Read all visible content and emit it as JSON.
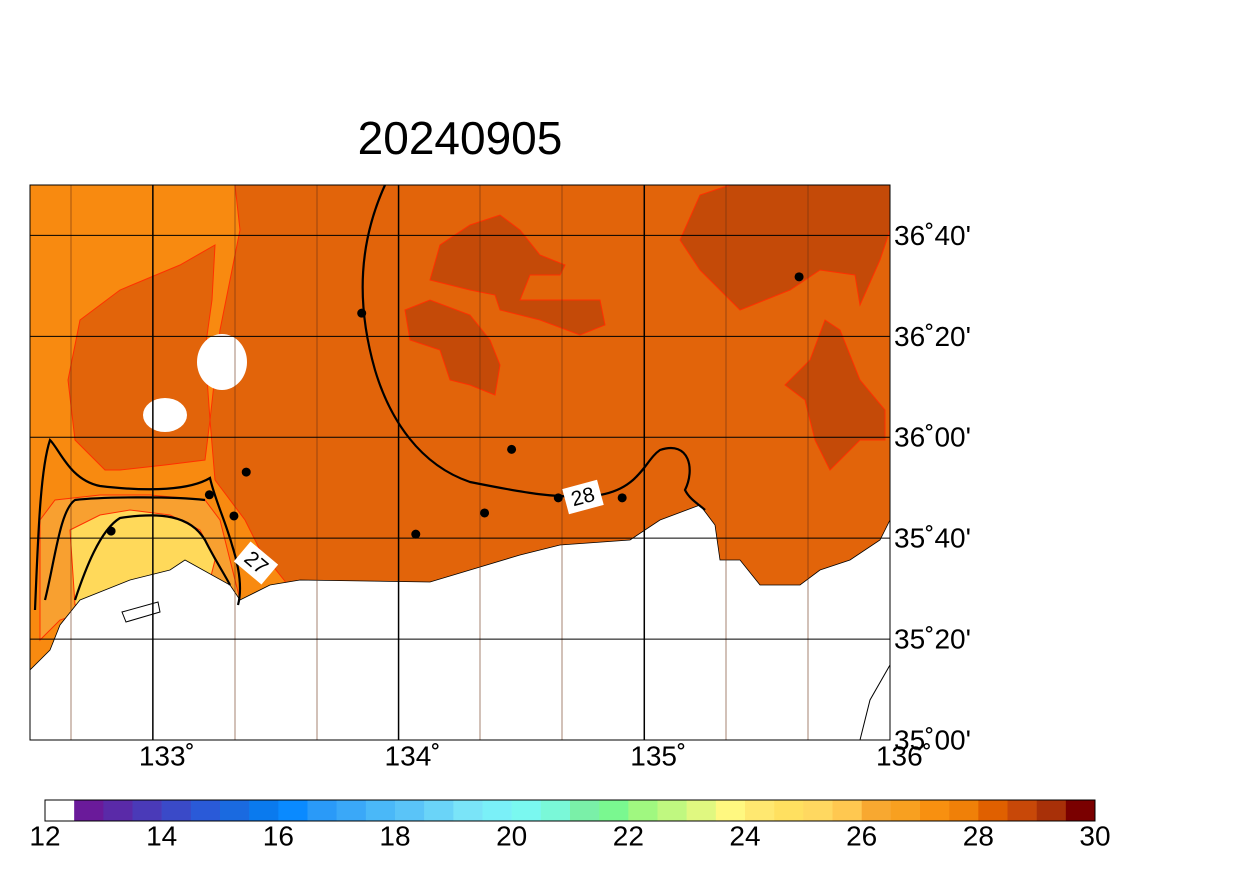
{
  "title": "20240905",
  "map": {
    "xlim": [
      132.5,
      136
    ],
    "ylim": [
      35,
      36.8333
    ],
    "xticks": [
      {
        "value": 133,
        "label": "133˚"
      },
      {
        "value": 134,
        "label": "134˚"
      },
      {
        "value": 135,
        "label": "135˚"
      },
      {
        "value": 136,
        "label": "136˚"
      }
    ],
    "yticks": [
      {
        "value": 35,
        "label": "35˚00'"
      },
      {
        "value": 35.3333,
        "label": "35˚20'"
      },
      {
        "value": 35.6667,
        "label": "35˚40'"
      },
      {
        "value": 36,
        "label": "36˚00'"
      },
      {
        "value": 36.3333,
        "label": "36˚20'"
      },
      {
        "value": 36.6667,
        "label": "36˚40'"
      }
    ],
    "stations": [
      {
        "lon": 133.85,
        "lat": 36.41
      },
      {
        "lon": 133.38,
        "lat": 35.885
      },
      {
        "lon": 133.23,
        "lat": 35.81
      },
      {
        "lon": 133.33,
        "lat": 35.74
      },
      {
        "lon": 132.83,
        "lat": 35.69
      },
      {
        "lon": 134.07,
        "lat": 35.68
      },
      {
        "lon": 134.35,
        "lat": 35.75
      },
      {
        "lon": 134.46,
        "lat": 35.96
      },
      {
        "lon": 134.65,
        "lat": 35.8
      },
      {
        "lon": 134.91,
        "lat": 35.8
      },
      {
        "lon": 135.63,
        "lat": 36.53
      }
    ],
    "contour_labels": [
      "27",
      "28"
    ]
  },
  "colorbar": {
    "lim": [
      12,
      30
    ],
    "ticks": [
      12,
      14,
      16,
      18,
      20,
      22,
      24,
      26,
      28,
      30
    ],
    "colors": [
      "#ffffff",
      "#6a1a9a",
      "#5a2aa8",
      "#4a3ab8",
      "#3a4ac8",
      "#2a5ad8",
      "#1a6ae0",
      "#0a7aee",
      "#0a8aff",
      "#2a9af8",
      "#3aa8f8",
      "#4ab8f8",
      "#5ac4f8",
      "#6ad4f8",
      "#7ae4f8",
      "#7af0f8",
      "#7af8f0",
      "#7af8d8",
      "#7af0a8",
      "#7af890",
      "#a0f880",
      "#c0f880",
      "#e0f880",
      "#fff880",
      "#ffe870",
      "#ffe060",
      "#ffd860",
      "#ffc850",
      "#f8a830",
      "#f8a020",
      "#f89010",
      "#f08008",
      "#e06000",
      "#c84808",
      "#a83008",
      "#7a0000"
    ]
  }
}
